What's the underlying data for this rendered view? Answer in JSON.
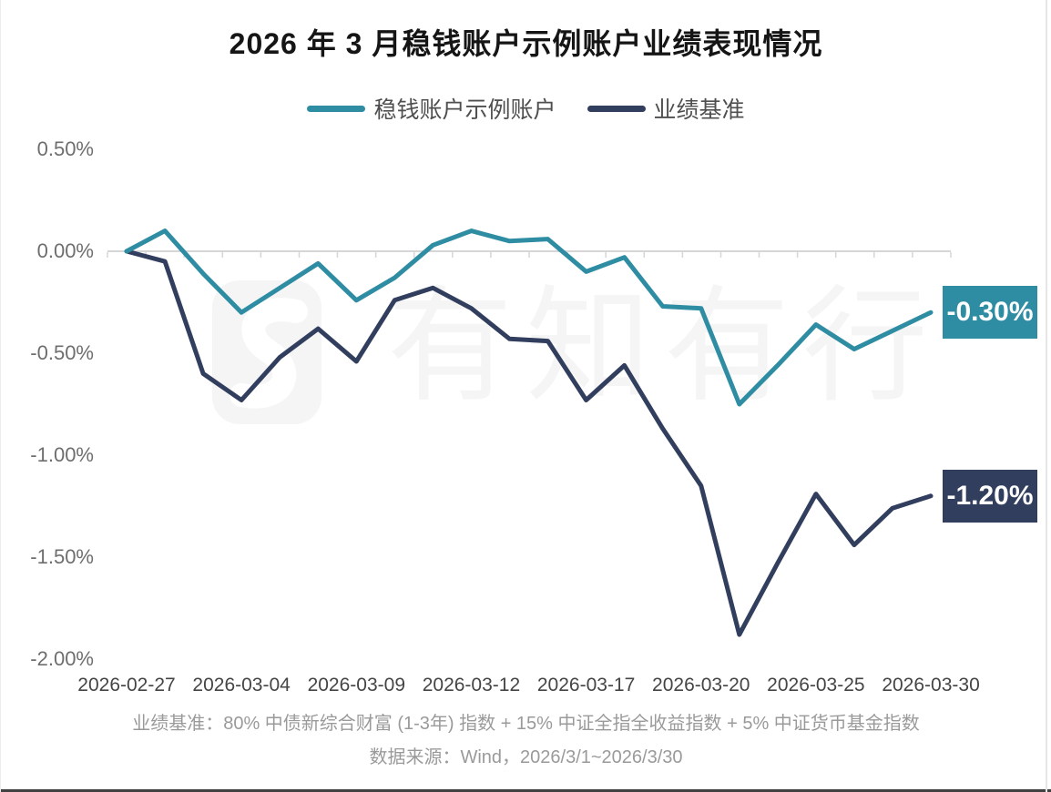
{
  "page": {
    "title": "2026 年 3 月稳钱账户示例账户业绩表现情况",
    "watermark_text": "有知有行",
    "footer": {
      "benchmark_note": "业绩基准：80% 中债新综合财富 (1-3年) 指数 + 15% 中证全指全收益指数 + 5% 中证货币基金指数",
      "data_source": "数据来源：Wind，2026/3/1~2026/3/30"
    }
  },
  "chart_data": {
    "type": "line",
    "title": "2026 年 3 月稳钱账户示例账户业绩表现情况",
    "x": [
      "2026-02-27",
      "2026-03-02",
      "2026-03-03",
      "2026-03-04",
      "2026-03-05",
      "2026-03-06",
      "2026-03-09",
      "2026-03-10",
      "2026-03-11",
      "2026-03-12",
      "2026-03-13",
      "2026-03-16",
      "2026-03-17",
      "2026-03-18",
      "2026-03-19",
      "2026-03-20",
      "2026-03-23",
      "2026-03-24",
      "2026-03-25",
      "2026-03-26",
      "2026-03-27",
      "2026-03-30"
    ],
    "x_tick_labels": [
      "2026-02-27",
      "2026-03-04",
      "2026-03-09",
      "2026-03-12",
      "2026-03-17",
      "2026-03-20",
      "2026-03-25",
      "2026-03-30"
    ],
    "y_tick_labels": [
      "0.50%",
      "0.00%",
      "-0.50%",
      "-1.00%",
      "-1.50%",
      "-2.00%"
    ],
    "ylim": [
      -2.0,
      0.5
    ],
    "y_unit": "%",
    "grid": "zero-line-only",
    "legend_position": "top",
    "series": [
      {
        "name": "稳钱账户示例账户",
        "color": "#2E8CA3",
        "end_label": "-0.30%",
        "values": [
          0.0,
          0.1,
          -0.11,
          -0.3,
          -0.18,
          -0.06,
          -0.24,
          -0.13,
          0.03,
          0.1,
          0.05,
          0.06,
          -0.1,
          -0.03,
          -0.27,
          -0.28,
          -0.75,
          -0.56,
          -0.36,
          -0.48,
          -0.39,
          -0.3
        ]
      },
      {
        "name": "业绩基准",
        "color": "#323E5E",
        "end_label": "-1.20%",
        "values": [
          0.0,
          -0.05,
          -0.6,
          -0.73,
          -0.52,
          -0.38,
          -0.54,
          -0.24,
          -0.18,
          -0.28,
          -0.43,
          -0.44,
          -0.73,
          -0.56,
          -0.87,
          -1.15,
          -1.88,
          -1.53,
          -1.19,
          -1.44,
          -1.26,
          -1.2
        ]
      }
    ]
  }
}
